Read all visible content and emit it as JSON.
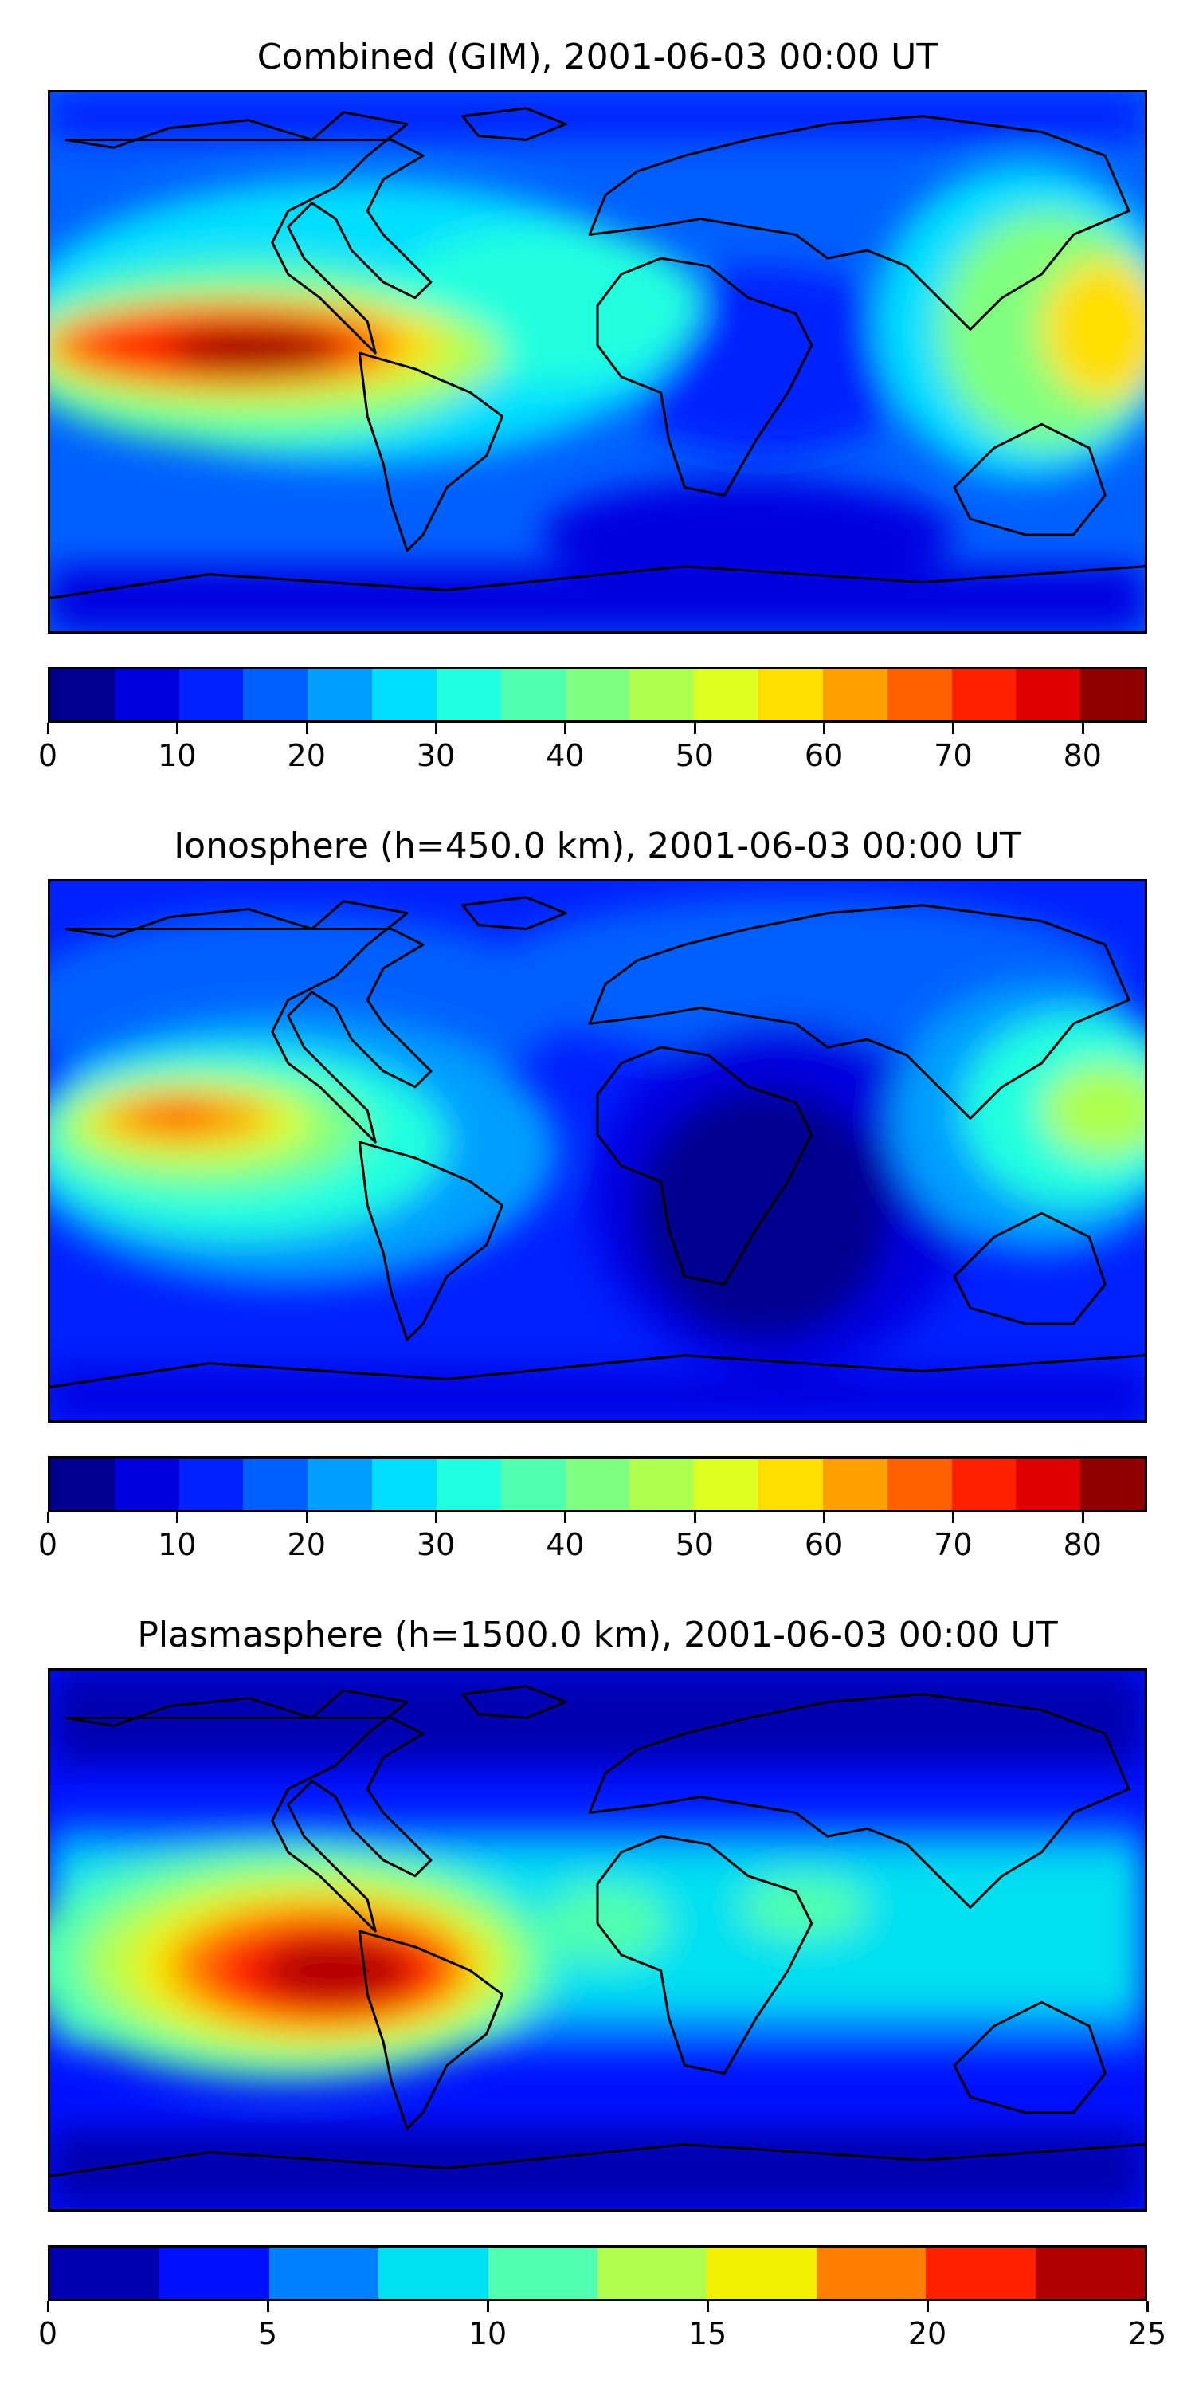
{
  "panels": [
    {
      "id": "combined",
      "title": "Combined (GIM), 2001-06-03 00:00 UT",
      "colorbar": {
        "min": 0,
        "max": 85,
        "step": 5,
        "ticks": [
          "0",
          "10",
          "20",
          "30",
          "40",
          "50",
          "60",
          "70",
          "80"
        ],
        "tick_values": [
          0,
          10,
          20,
          30,
          40,
          50,
          60,
          70,
          80
        ],
        "colors": [
          "#00008f",
          "#0000df",
          "#0020ff",
          "#0060ff",
          "#009fff",
          "#00dfff",
          "#20ffdf",
          "#50ffaf",
          "#80ff80",
          "#afff50",
          "#dfff20",
          "#ffdf00",
          "#ffa000",
          "#ff6000",
          "#ff2000",
          "#df0000",
          "#8f0000"
        ]
      }
    },
    {
      "id": "ionosphere",
      "title": "Ionosphere  (h=450.0 km), 2001-06-03 00:00 UT",
      "colorbar": {
        "min": 0,
        "max": 85,
        "step": 5,
        "ticks": [
          "0",
          "10",
          "20",
          "30",
          "40",
          "50",
          "60",
          "70",
          "80"
        ],
        "tick_values": [
          0,
          10,
          20,
          30,
          40,
          50,
          60,
          70,
          80
        ],
        "colors": [
          "#00008f",
          "#0000df",
          "#0020ff",
          "#0060ff",
          "#009fff",
          "#00dfff",
          "#20ffdf",
          "#50ffaf",
          "#80ff80",
          "#afff50",
          "#dfff20",
          "#ffdf00",
          "#ffa000",
          "#ff6000",
          "#ff2000",
          "#df0000",
          "#8f0000"
        ]
      }
    },
    {
      "id": "plasmasphere",
      "title": "Plasmasphere (h=1500.0 km), 2001-06-03 00:00 UT",
      "colorbar": {
        "min": 0,
        "max": 25,
        "step": 2.5,
        "ticks": [
          "0",
          "5",
          "10",
          "15",
          "20",
          "25"
        ],
        "tick_values": [
          0,
          5,
          10,
          15,
          20,
          25
        ],
        "colors": [
          "#0000b0",
          "#0010ff",
          "#0080ff",
          "#00e0f0",
          "#50ffb0",
          "#b0ff50",
          "#f0f000",
          "#ff8000",
          "#ff2000",
          "#b00000"
        ]
      }
    }
  ]
}
